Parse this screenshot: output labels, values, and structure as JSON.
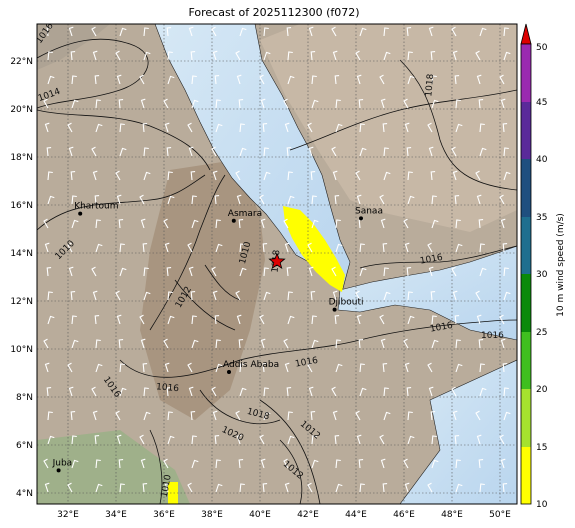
{
  "title": "Forecast of 2025112300 (f072)",
  "lat_ticks": [
    "22°N",
    "20°N",
    "18°N",
    "16°N",
    "14°N",
    "12°N",
    "10°N",
    "8°N",
    "6°N",
    "4°N"
  ],
  "lon_ticks": [
    "32°E",
    "34°E",
    "36°E",
    "38°E",
    "40°E",
    "42°E",
    "44°E",
    "46°E",
    "48°E",
    "50°E"
  ],
  "colorbar": {
    "label": "10 m wind speed (m/s)",
    "ticks": [
      "10",
      "15",
      "20",
      "25",
      "30",
      "35",
      "40",
      "45",
      "50"
    ],
    "colors": [
      "#ffff00",
      "#a6e22e",
      "#3fbf1f",
      "#0a8a0a",
      "#1f6f8f",
      "#1f4f7f",
      "#1f2f6f",
      "#5a2a9a",
      "#9a2ab0"
    ],
    "extend_color": "#dd0000"
  },
  "cities": [
    {
      "name": "Khartoum",
      "lat": 15.6,
      "lon": 32.5
    },
    {
      "name": "Asmara",
      "lat": 15.3,
      "lon": 38.9
    },
    {
      "name": "Sanaa",
      "lat": 15.4,
      "lon": 44.2
    },
    {
      "name": "Djibouti",
      "lat": 11.6,
      "lon": 43.1
    },
    {
      "name": "Addis Ababa",
      "lat": 9.0,
      "lon": 38.7
    },
    {
      "name": "Juba",
      "lat": 4.9,
      "lon": 31.6
    }
  ],
  "marker": {
    "type": "star",
    "lat": 13.6,
    "lon": 40.7,
    "color": "#dd0000"
  },
  "isobar_labels": [
    "1016",
    "1014",
    "1010",
    "1012",
    "1010",
    "1016",
    "1016",
    "1016",
    "1016",
    "1016",
    "1018",
    "1016",
    "1018",
    "1018",
    "1020",
    "1012",
    "1012",
    "1010"
  ]
}
